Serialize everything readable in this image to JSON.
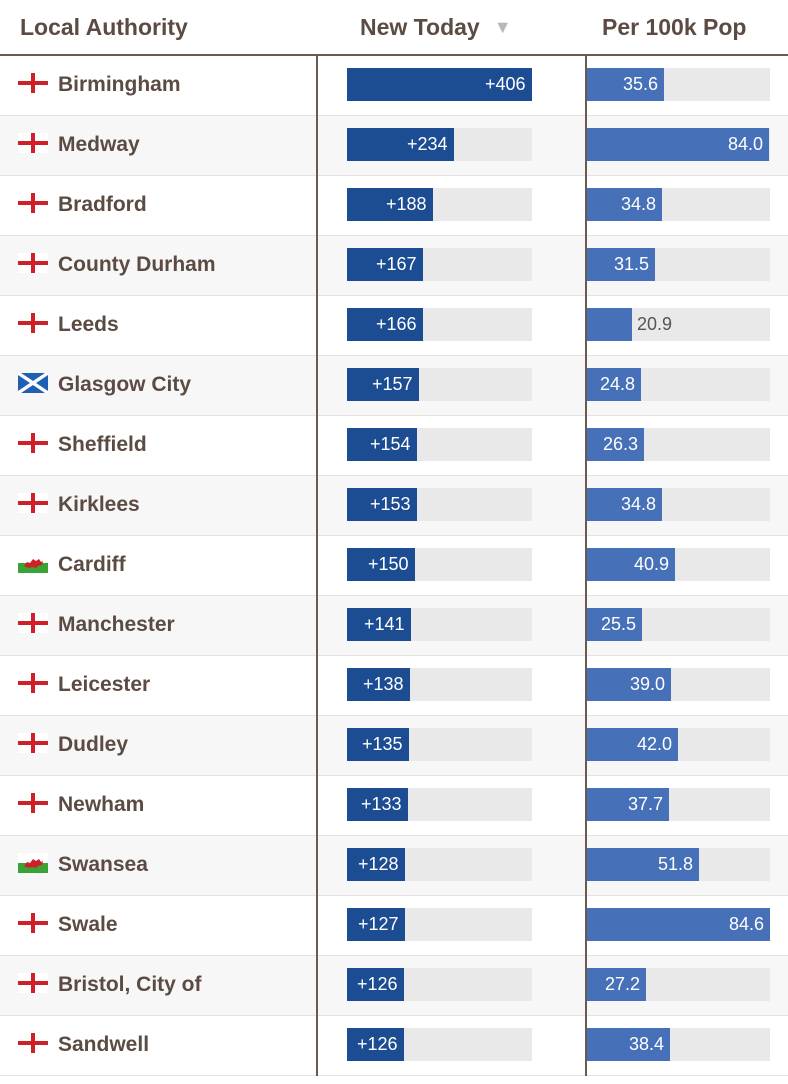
{
  "header": {
    "name_label": "Local Authority",
    "new_label": "New Today",
    "sort_glyph": "▼",
    "per_label": "Per 100k Pop"
  },
  "colors": {
    "new_bar": "#1c4c91",
    "per_bar": "#4670b8",
    "track": "#e9e9e9",
    "england_cross": "#cf2027",
    "scotland_blue": "#1f5fb4",
    "wales_green": "#3aa335",
    "wales_red": "#cf2027"
  },
  "chart_data": {
    "type": "table",
    "columns": [
      "Local Authority",
      "New Today",
      "Per 100k Pop"
    ],
    "new_max": 406,
    "per_max": 84.6,
    "sorted_by": "New Today",
    "rows": [
      {
        "flag": "england-flag-icon",
        "name": "Birmingham",
        "new": 406,
        "new_label": "+406",
        "per": 35.6,
        "per_label": "35.6"
      },
      {
        "flag": "england-flag-icon",
        "name": "Medway",
        "new": 234,
        "new_label": "+234",
        "per": 84.0,
        "per_label": "84.0"
      },
      {
        "flag": "england-flag-icon",
        "name": "Bradford",
        "new": 188,
        "new_label": "+188",
        "per": 34.8,
        "per_label": "34.8"
      },
      {
        "flag": "england-flag-icon",
        "name": "County Durham",
        "new": 167,
        "new_label": "+167",
        "per": 31.5,
        "per_label": "31.5"
      },
      {
        "flag": "england-flag-icon",
        "name": "Leeds",
        "new": 166,
        "new_label": "+166",
        "per": 20.9,
        "per_label": "20.9"
      },
      {
        "flag": "scotland-flag-icon",
        "name": "Glasgow City",
        "new": 157,
        "new_label": "+157",
        "per": 24.8,
        "per_label": "24.8"
      },
      {
        "flag": "england-flag-icon",
        "name": "Sheffield",
        "new": 154,
        "new_label": "+154",
        "per": 26.3,
        "per_label": "26.3"
      },
      {
        "flag": "england-flag-icon",
        "name": "Kirklees",
        "new": 153,
        "new_label": "+153",
        "per": 34.8,
        "per_label": "34.8"
      },
      {
        "flag": "wales-flag-icon",
        "name": "Cardiff",
        "new": 150,
        "new_label": "+150",
        "per": 40.9,
        "per_label": "40.9"
      },
      {
        "flag": "england-flag-icon",
        "name": "Manchester",
        "new": 141,
        "new_label": "+141",
        "per": 25.5,
        "per_label": "25.5"
      },
      {
        "flag": "england-flag-icon",
        "name": "Leicester",
        "new": 138,
        "new_label": "+138",
        "per": 39.0,
        "per_label": "39.0"
      },
      {
        "flag": "england-flag-icon",
        "name": "Dudley",
        "new": 135,
        "new_label": "+135",
        "per": 42.0,
        "per_label": "42.0"
      },
      {
        "flag": "england-flag-icon",
        "name": "Newham",
        "new": 133,
        "new_label": "+133",
        "per": 37.7,
        "per_label": "37.7"
      },
      {
        "flag": "wales-flag-icon",
        "name": "Swansea",
        "new": 128,
        "new_label": "+128",
        "per": 51.8,
        "per_label": "51.8"
      },
      {
        "flag": "england-flag-icon",
        "name": "Swale",
        "new": 127,
        "new_label": "+127",
        "per": 84.6,
        "per_label": "84.6"
      },
      {
        "flag": "england-flag-icon",
        "name": "Bristol, City of",
        "new": 126,
        "new_label": "+126",
        "per": 27.2,
        "per_label": "27.2"
      },
      {
        "flag": "england-flag-icon",
        "name": "Sandwell",
        "new": 126,
        "new_label": "+126",
        "per": 38.4,
        "per_label": "38.4"
      }
    ]
  }
}
